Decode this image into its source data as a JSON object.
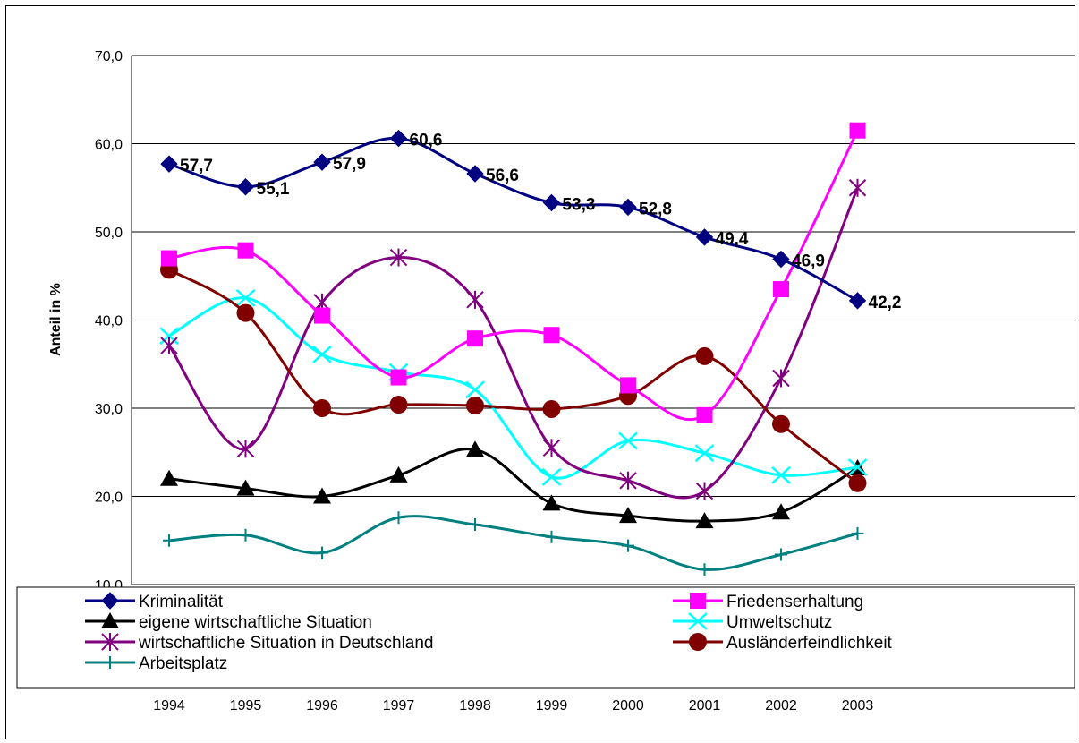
{
  "chart_data": {
    "type": "line",
    "title": "",
    "xlabel": "",
    "ylabel": "Anteil in %",
    "ylim": [
      10,
      70
    ],
    "yticks": [
      "10,0",
      "20,0",
      "30,0",
      "40,0",
      "50,0",
      "60,0",
      "70,0"
    ],
    "grid": "horizontal",
    "legend_position": "bottom",
    "categories": [
      "1994",
      "1995",
      "1996",
      "1997",
      "1998",
      "1999",
      "2000",
      "2001",
      "2002",
      "2003"
    ],
    "data_labels_series": "Kriminalität",
    "data_labels": [
      "57,7",
      "55,1",
      "57,9",
      "60,6",
      "56,6",
      "53,3",
      "52,8",
      "49,4",
      "46,9",
      "42,2"
    ],
    "series": [
      {
        "name": "Kriminalität",
        "marker": "diamond",
        "color": "#000080",
        "values": [
          57.7,
          55.1,
          57.9,
          60.6,
          56.6,
          53.3,
          52.8,
          49.4,
          46.9,
          42.2
        ]
      },
      {
        "name": "Friedenserhaltung",
        "marker": "square",
        "color": "#ff00ff",
        "values": [
          47.0,
          47.9,
          40.5,
          33.5,
          37.9,
          38.3,
          32.6,
          29.2,
          43.5,
          61.5
        ]
      },
      {
        "name": "eigene wirtschaftliche Situation",
        "marker": "triangle",
        "color": "#000000",
        "values": [
          22.0,
          20.9,
          20.0,
          22.4,
          25.3,
          19.2,
          17.8,
          17.2,
          18.2,
          23.2
        ]
      },
      {
        "name": "Umweltschutz",
        "marker": "x",
        "color": "#00ffff",
        "values": [
          38.2,
          42.5,
          36.1,
          34.1,
          32.1,
          22.2,
          26.3,
          24.9,
          22.4,
          23.3
        ]
      },
      {
        "name": " wirtschaftliche Situation in Deutschland",
        "marker": "star",
        "color": "#800080",
        "values": [
          37.1,
          25.4,
          42.0,
          47.1,
          42.3,
          25.5,
          21.8,
          20.6,
          33.4,
          55.0
        ]
      },
      {
        "name": "Ausländerfeindlichkeit",
        "marker": "circle",
        "color": "#800000",
        "values": [
          45.7,
          40.8,
          30.0,
          30.4,
          30.3,
          29.9,
          31.4,
          35.9,
          28.2,
          21.5
        ]
      },
      {
        "name": "Arbeitsplatz",
        "marker": "plus",
        "color": "#008080",
        "values": [
          15.0,
          15.6,
          13.6,
          17.6,
          16.8,
          15.4,
          14.4,
          11.7,
          13.4,
          15.8
        ]
      }
    ]
  }
}
